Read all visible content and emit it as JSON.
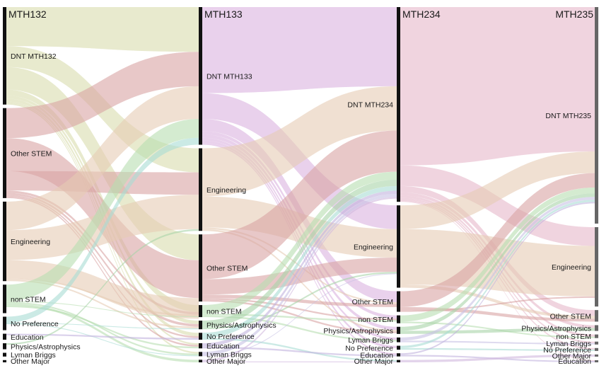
{
  "colors": {
    "DNT": "#d9dcae",
    "DNT133": "#dbb2e0",
    "DNT234": "#e6b8c9",
    "Other STEM": "#d9a4a4",
    "Engineering": "#e6ccb4",
    "non STEM": "#b8ddb0",
    "No Preference": "#a8dcd4",
    "Education": "#c2b3dd",
    "Physics/Astrophysics": "#a9d4a9",
    "Lyman Briggs": "#c8c2e4",
    "Other Major": "#d0b7dd",
    "bar": "#111111",
    "bar_last": "#666666"
  },
  "chart_data": {
    "type": "sankey",
    "columns": [
      {
        "title": "MTH132",
        "nodes": [
          {
            "label": "DNT MTH132",
            "value": 130,
            "color_key": "DNT"
          },
          {
            "label": "Other STEM",
            "value": 120,
            "color_key": "Other STEM"
          },
          {
            "label": "Engineering",
            "value": 106,
            "color_key": "Engineering"
          },
          {
            "label": "non STEM",
            "value": 38,
            "color_key": "non STEM"
          },
          {
            "label": "No Preference",
            "value": 18,
            "color_key": "No Preference"
          },
          {
            "label": "Education",
            "value": 8,
            "color_key": "Education"
          },
          {
            "label": "Physics/Astrophysics",
            "value": 8,
            "color_key": "Physics/Astrophysics"
          },
          {
            "label": "Lyman Briggs",
            "value": 5,
            "color_key": "Lyman Briggs"
          },
          {
            "label": "Other Major",
            "value": 3,
            "color_key": "Other Major"
          }
        ]
      },
      {
        "title": "MTH133",
        "nodes": [
          {
            "label": "DNT MTH133",
            "value": 160,
            "color_key": "DNT133"
          },
          {
            "label": "Engineering",
            "value": 96,
            "color_key": "Engineering"
          },
          {
            "label": "Other STEM",
            "value": 78,
            "color_key": "Other STEM"
          },
          {
            "label": "non STEM",
            "value": 14,
            "color_key": "non STEM"
          },
          {
            "label": "Physics/Astrophysics",
            "value": 10,
            "color_key": "Physics/Astrophysics"
          },
          {
            "label": "No Preference",
            "value": 8,
            "color_key": "No Preference"
          },
          {
            "label": "Education",
            "value": 6,
            "color_key": "Education"
          },
          {
            "label": "Lyman Briggs",
            "value": 5,
            "color_key": "Lyman Briggs"
          },
          {
            "label": "Other Major",
            "value": 3,
            "color_key": "Other Major"
          }
        ]
      },
      {
        "title": "MTH234",
        "nodes": [
          {
            "label": "DNT MTH234",
            "value": 246,
            "color_key": "DNT234"
          },
          {
            "label": "Engineering",
            "value": 104,
            "color_key": "Engineering"
          },
          {
            "label": "Other STEM",
            "value": 26,
            "color_key": "Other STEM"
          },
          {
            "label": "non STEM",
            "value": 10,
            "color_key": "non STEM"
          },
          {
            "label": "Physics/Astrophysics",
            "value": 9,
            "color_key": "Physics/Astrophysics"
          },
          {
            "label": "Lyman Briggs",
            "value": 6,
            "color_key": "Lyman Briggs"
          },
          {
            "label": "No Preference",
            "value": 5,
            "color_key": "No Preference"
          },
          {
            "label": "Education",
            "value": 4,
            "color_key": "Education"
          },
          {
            "label": "Other Major",
            "value": 3,
            "color_key": "Other Major"
          }
        ]
      },
      {
        "title": "MTH235",
        "nodes": [
          {
            "label": "DNT MTH235",
            "value": 300,
            "color_key": "DNT234"
          },
          {
            "label": "Engineering",
            "value": 110,
            "color_key": "Engineering"
          },
          {
            "label": "Other STEM",
            "value": 16,
            "color_key": "Other STEM"
          },
          {
            "label": "Physics/Astrophysics",
            "value": 8,
            "color_key": "Physics/Astrophysics"
          },
          {
            "label": "non STEM",
            "value": 5,
            "color_key": "non STEM"
          },
          {
            "label": "Lyman Briggs",
            "value": 4,
            "color_key": "Lyman Briggs"
          },
          {
            "label": "No Preference",
            "value": 4,
            "color_key": "No Preference"
          },
          {
            "label": "Other Major",
            "value": 3,
            "color_key": "Other Major"
          },
          {
            "label": "Education",
            "value": 3,
            "color_key": "Education"
          }
        ]
      }
    ],
    "flows": [
      [
        {
          "from": "DNT MTH132",
          "to": "DNT MTH133",
          "value": 52
        },
        {
          "from": "DNT MTH132",
          "to": "Engineering",
          "value": 28
        },
        {
          "from": "DNT MTH132",
          "to": "Other STEM",
          "value": 30
        },
        {
          "from": "DNT MTH132",
          "to": "non STEM",
          "value": 8
        },
        {
          "from": "DNT MTH132",
          "to": "Physics/Astrophysics",
          "value": 4
        },
        {
          "from": "DNT MTH132",
          "to": "No Preference",
          "value": 4
        },
        {
          "from": "DNT MTH132",
          "to": "Education",
          "value": 2
        },
        {
          "from": "DNT MTH132",
          "to": "Lyman Briggs",
          "value": 2
        },
        {
          "from": "Other STEM",
          "to": "DNT MTH133",
          "value": 40
        },
        {
          "from": "Other STEM",
          "to": "Other STEM",
          "value": 44
        },
        {
          "from": "Other STEM",
          "to": "Engineering",
          "value": 26
        },
        {
          "from": "Other STEM",
          "to": "non STEM",
          "value": 3
        },
        {
          "from": "Other STEM",
          "to": "Physics/Astrophysics",
          "value": 3
        },
        {
          "from": "Other STEM",
          "to": "No Preference",
          "value": 2
        },
        {
          "from": "Other STEM",
          "to": "Education",
          "value": 2
        },
        {
          "from": "Engineering",
          "to": "DNT MTH133",
          "value": 38
        },
        {
          "from": "Engineering",
          "to": "Engineering",
          "value": 40
        },
        {
          "from": "Engineering",
          "to": "Other STEM",
          "value": 24
        },
        {
          "from": "Engineering",
          "to": "non STEM",
          "value": 2
        },
        {
          "from": "Engineering",
          "to": "Physics/Astrophysics",
          "value": 2
        },
        {
          "from": "non STEM",
          "to": "DNT MTH133",
          "value": 22
        },
        {
          "from": "non STEM",
          "to": "non STEM",
          "value": 1
        },
        {
          "from": "non STEM",
          "to": "Lyman Briggs",
          "value": 2
        },
        {
          "from": "non STEM",
          "to": "Other Major",
          "value": 3
        },
        {
          "from": "non STEM",
          "to": "Education",
          "value": 2
        },
        {
          "from": "No Preference",
          "to": "DNT MTH133",
          "value": 8
        },
        {
          "from": "No Preference",
          "to": "Physics/Astrophysics",
          "value": 1
        },
        {
          "from": "No Preference",
          "to": "Lyman Briggs",
          "value": 1
        },
        {
          "from": "Education",
          "to": "No Preference",
          "value": 2
        },
        {
          "from": "Physics/Astrophysics",
          "to": "Engineering",
          "value": 2
        },
        {
          "from": "Lyman Briggs",
          "to": "Other STEM",
          "value": 0
        }
      ],
      [
        {
          "from": "DNT MTH133",
          "to": "DNT MTH234",
          "value": 100
        },
        {
          "from": "DNT MTH133",
          "to": "Engineering",
          "value": 30
        },
        {
          "from": "DNT MTH133",
          "to": "Other STEM",
          "value": 14
        },
        {
          "from": "DNT MTH133",
          "to": "non STEM",
          "value": 4
        },
        {
          "from": "DNT MTH133",
          "to": "Physics/Astrophysics",
          "value": 4
        },
        {
          "from": "DNT MTH133",
          "to": "Lyman Briggs",
          "value": 3
        },
        {
          "from": "DNT MTH133",
          "to": "No Preference",
          "value": 3
        },
        {
          "from": "DNT MTH133",
          "to": "Education",
          "value": 2
        },
        {
          "from": "Engineering",
          "to": "DNT MTH234",
          "value": 56
        },
        {
          "from": "Engineering",
          "to": "Engineering",
          "value": 36
        },
        {
          "from": "Engineering",
          "to": "Other STEM",
          "value": 2
        },
        {
          "from": "Engineering",
          "to": "Physics/Astrophysics",
          "value": 2
        },
        {
          "from": "Other STEM",
          "to": "DNT MTH234",
          "value": 52
        },
        {
          "from": "Other STEM",
          "to": "Engineering",
          "value": 18
        },
        {
          "from": "Other STEM",
          "to": "Other STEM",
          "value": 4
        },
        {
          "from": "Other STEM",
          "to": "non STEM",
          "value": 2
        },
        {
          "from": "Other STEM",
          "to": "Physics/Astrophysics",
          "value": 2
        },
        {
          "from": "non STEM",
          "to": "DNT MTH234",
          "value": 10
        },
        {
          "from": "non STEM",
          "to": "non STEM",
          "value": 2
        },
        {
          "from": "non STEM",
          "to": "Lyman Briggs",
          "value": 2
        },
        {
          "from": "Physics/Astrophysics",
          "to": "DNT MTH234",
          "value": 8
        },
        {
          "from": "Physics/Astrophysics",
          "to": "Engineering",
          "value": 2
        },
        {
          "from": "No Preference",
          "to": "DNT MTH234",
          "value": 6
        },
        {
          "from": "No Preference",
          "to": "Other Major",
          "value": 2
        },
        {
          "from": "Education",
          "to": "DNT MTH234",
          "value": 4
        },
        {
          "from": "Education",
          "to": "Education",
          "value": 2
        },
        {
          "from": "Lyman Briggs",
          "to": "DNT MTH234",
          "value": 4
        },
        {
          "from": "Lyman Briggs",
          "to": "Engineering",
          "value": 1
        },
        {
          "from": "Other Major",
          "to": "DNT MTH234",
          "value": 2
        },
        {
          "from": "Other Major",
          "to": "Other Major",
          "value": 1
        }
      ],
      [
        {
          "from": "DNT MTH234",
          "to": "DNT MTH235",
          "value": 200
        },
        {
          "from": "DNT MTH234",
          "to": "Engineering",
          "value": 26
        },
        {
          "from": "DNT MTH234",
          "to": "Other STEM",
          "value": 8
        },
        {
          "from": "DNT MTH234",
          "to": "Physics/Astrophysics",
          "value": 4
        },
        {
          "from": "DNT MTH234",
          "to": "non STEM",
          "value": 3
        },
        {
          "from": "DNT MTH234",
          "to": "Lyman Briggs",
          "value": 2
        },
        {
          "from": "DNT MTH234",
          "to": "No Preference",
          "value": 2
        },
        {
          "from": "DNT MTH234",
          "to": "Education",
          "value": 1
        },
        {
          "from": "Engineering",
          "to": "DNT MTH235",
          "value": 30
        },
        {
          "from": "Engineering",
          "to": "Engineering",
          "value": 70
        },
        {
          "from": "Engineering",
          "to": "Other STEM",
          "value": 4
        },
        {
          "from": "Other STEM",
          "to": "DNT MTH235",
          "value": 20
        },
        {
          "from": "Other STEM",
          "to": "Other STEM",
          "value": 4
        },
        {
          "from": "Other STEM",
          "to": "Engineering",
          "value": 2
        },
        {
          "from": "non STEM",
          "to": "DNT MTH235",
          "value": 8
        },
        {
          "from": "non STEM",
          "to": "non STEM",
          "value": 2
        },
        {
          "from": "Physics/Astrophysics",
          "to": "DNT MTH235",
          "value": 5
        },
        {
          "from": "Physics/Astrophysics",
          "to": "Physics/Astrophysics",
          "value": 4
        },
        {
          "from": "Lyman Briggs",
          "to": "DNT MTH235",
          "value": 4
        },
        {
          "from": "Lyman Briggs",
          "to": "Lyman Briggs",
          "value": 2
        },
        {
          "from": "No Preference",
          "to": "DNT MTH235",
          "value": 3
        },
        {
          "from": "No Preference",
          "to": "No Preference",
          "value": 2
        },
        {
          "from": "Education",
          "to": "DNT MTH235",
          "value": 2
        },
        {
          "from": "Education",
          "to": "Education",
          "value": 2
        },
        {
          "from": "Other Major",
          "to": "DNT MTH235",
          "value": 0
        },
        {
          "from": "Other Major",
          "to": "Other Major",
          "value": 3
        }
      ]
    ]
  }
}
